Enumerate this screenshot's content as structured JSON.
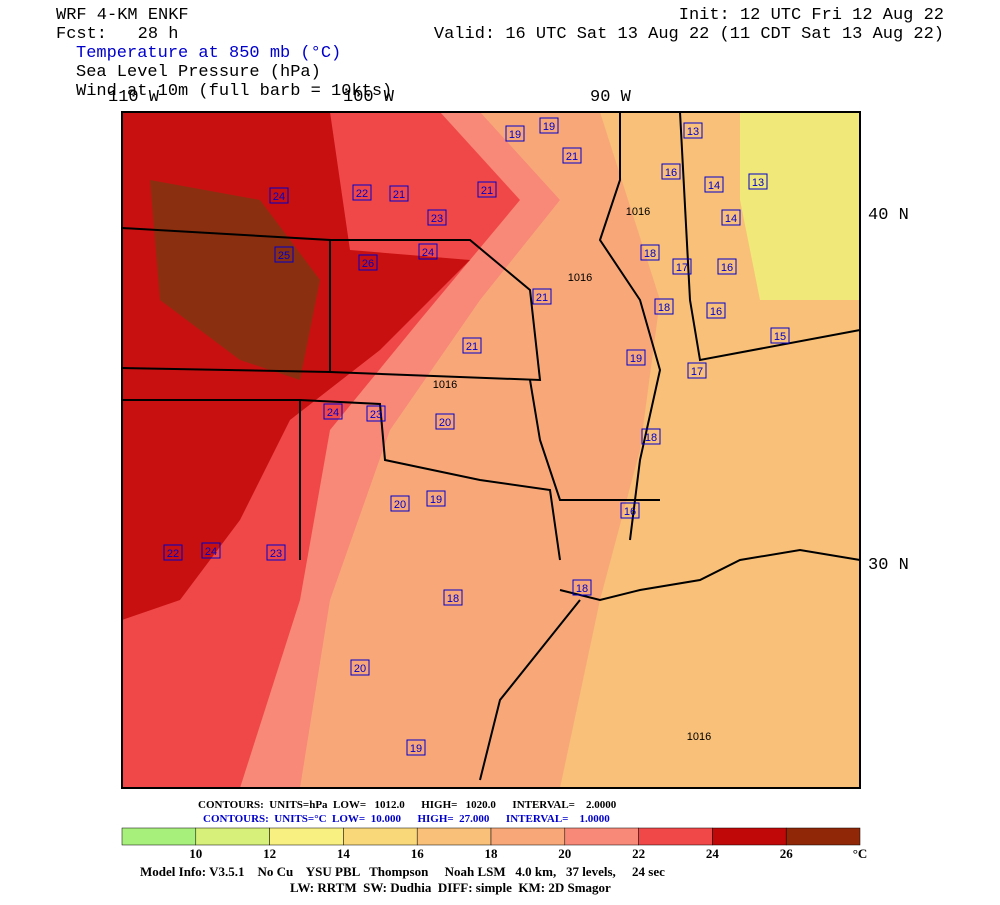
{
  "header": {
    "model": "WRF 4-KM ENKF",
    "forecast": "Fcst:   28 h",
    "init": "Init: 12 UTC Fri 12 Aug 22",
    "valid": "Valid: 16 UTC Sat 13 Aug 22 (11 CDT Sat 13 Aug 22)",
    "fields": [
      "Temperature at 850 mb (°C)",
      "Sea Level Pressure (hPa)",
      "Wind at 10m (full barb = 10kts)"
    ]
  },
  "map": {
    "lon_labels": [
      "110 W",
      "100 W",
      "90 W"
    ],
    "lat_labels": [
      "40 N",
      "30 N"
    ],
    "temperature_labels": [
      19,
      19,
      13,
      21,
      22,
      21,
      21,
      16,
      14,
      13,
      24,
      14,
      23,
      24,
      18,
      17,
      16,
      25,
      26,
      21,
      18,
      16,
      15,
      21,
      19,
      17,
      24,
      23,
      20,
      18,
      20,
      19,
      16,
      22,
      24,
      23,
      18,
      18,
      20,
      19
    ],
    "pressure_labels": [
      1016,
      1016,
      1016,
      1016
    ]
  },
  "contour_info": {
    "pressure": "CONTOURS:  UNITS=hPa  LOW=   1012.0      HIGH=   1020.0      INTERVAL=    2.0000",
    "temperature": "CONTOURS:  UNITS=°C  LOW=  10.000      HIGH=  27.000      INTERVAL=    1.0000"
  },
  "colorbar": {
    "ticks": [
      10,
      12,
      14,
      16,
      18,
      20,
      22,
      24,
      26
    ],
    "unit": "°C",
    "colors": [
      "#a8f07c",
      "#d6f07a",
      "#f8f080",
      "#f8d878",
      "#f8c078",
      "#f8a878",
      "#f88878",
      "#f04848",
      "#c00808",
      "#902808"
    ]
  },
  "footer": [
    "Model Info: V3.5.1    No Cu    YSU PBL   Thompson     Noah LSM   4.0 km,   37 levels,     24 sec",
    "LW: RRTM  SW: Dudhia  DIFF: simple  KM: 2D Smagor"
  ]
}
